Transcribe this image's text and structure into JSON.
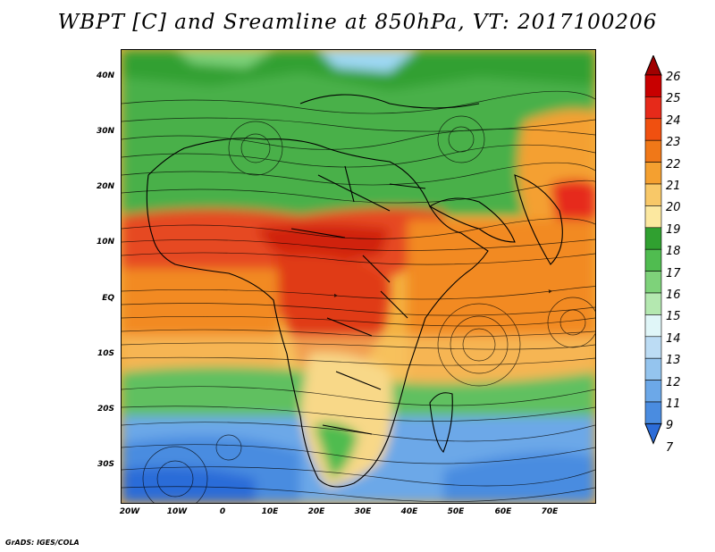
{
  "title": "WBPT [C] and Sreamline at 850hPa, VT: 2017100206",
  "latitude_labels": [
    "40N",
    "30N",
    "20N",
    "10N",
    "EQ",
    "10S",
    "20S",
    "30S"
  ],
  "longitude_labels": [
    "20W",
    "10W",
    "0",
    "10E",
    "20E",
    "30E",
    "40E",
    "50E",
    "60E",
    "70E"
  ],
  "colorbar": {
    "labels": [
      "26",
      "25",
      "24",
      "23",
      "22",
      "21",
      "20",
      "19",
      "18",
      "17",
      "16",
      "15",
      "14",
      "13",
      "12",
      "11",
      "9",
      "7"
    ],
    "colors": [
      "#a00000",
      "#c80000",
      "#e62a1a",
      "#f05010",
      "#f07818",
      "#f4a030",
      "#f8c868",
      "#fce8a0",
      "#30a030",
      "#50bc50",
      "#7ed27a",
      "#b4e8b0",
      "#e0f6f8",
      "#bcdcf4",
      "#94c4ee",
      "#6ca8e8",
      "#4a8ce0",
      "#2c6cd8"
    ]
  },
  "footer": "GrADS: IGES/COLA"
}
